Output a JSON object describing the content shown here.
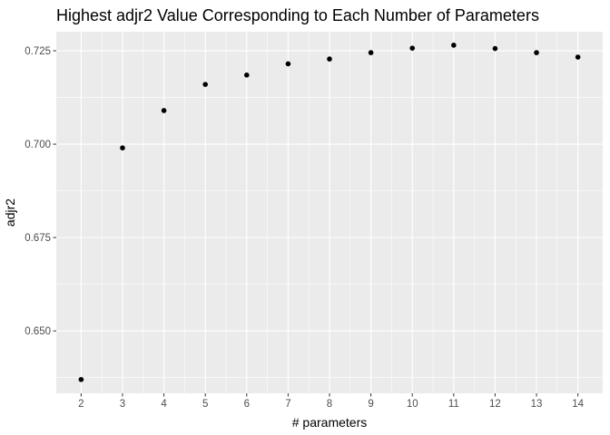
{
  "chart_data": {
    "type": "scatter",
    "title": "Highest adjr2 Value Corresponding to Each Number of Parameters",
    "xlabel": "# parameters",
    "ylabel": "adjr2",
    "x": [
      2,
      3,
      4,
      5,
      6,
      7,
      8,
      9,
      10,
      11,
      12,
      13,
      14
    ],
    "y": [
      0.637,
      0.699,
      0.709,
      0.716,
      0.7185,
      0.7215,
      0.7228,
      0.7245,
      0.7257,
      0.7265,
      0.7256,
      0.7245,
      0.7233
    ],
    "xlim": [
      1.4,
      14.6
    ],
    "ylim": [
      0.6333,
      0.7301
    ],
    "x_ticks": [
      2,
      3,
      4,
      5,
      6,
      7,
      8,
      9,
      10,
      11,
      12,
      13,
      14
    ],
    "y_ticks": [
      "0.650",
      "0.675",
      "0.700",
      "0.725"
    ],
    "grid": true,
    "panel_color": "#ebebeb",
    "grid_color": "#ffffff",
    "point_color": "#000000"
  }
}
